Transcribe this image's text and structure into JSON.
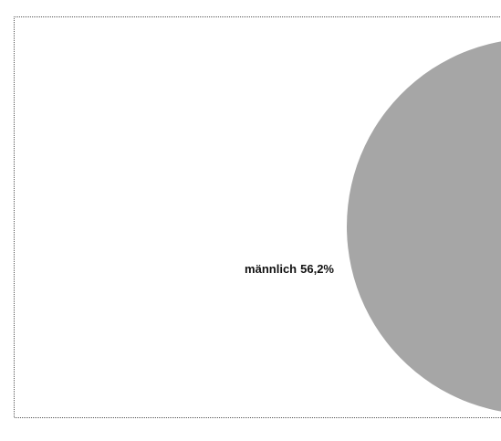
{
  "chart_data": {
    "type": "pie",
    "categories": [
      "männlich"
    ],
    "values": [
      56.2
    ],
    "value_labels": [
      "56,2%"
    ],
    "colors": [
      "#a6a6a6"
    ]
  }
}
